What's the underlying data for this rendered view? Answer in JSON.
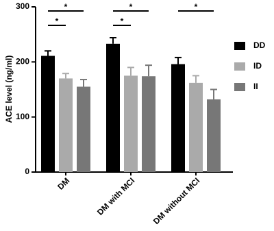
{
  "chart_data": {
    "type": "bar",
    "y_label": "ACE level (ng/ml)",
    "categories": [
      "DM",
      "DM with MCI",
      "DM without MCI"
    ],
    "series": [
      {
        "name": "DD",
        "color": "#000000",
        "values": [
          211,
          233,
          196
        ],
        "errors": [
          9,
          11,
          12
        ]
      },
      {
        "name": "ID",
        "color": "#aaaaaa",
        "values": [
          170,
          175,
          162
        ],
        "errors": [
          9,
          15,
          13
        ]
      },
      {
        "name": "II",
        "color": "#777777",
        "values": [
          155,
          174,
          132
        ],
        "errors": [
          13,
          20,
          18
        ]
      }
    ],
    "ylim": [
      0,
      300
    ],
    "yticks": [
      0,
      100,
      200,
      300
    ],
    "legend": "right",
    "annotations": [
      {
        "text": "*",
        "category": "DM",
        "between": [
          "DD",
          "II"
        ]
      },
      {
        "text": "*",
        "category": "DM",
        "between": [
          "DD",
          "ID"
        ]
      },
      {
        "text": "*",
        "category": "DM with MCI",
        "between": [
          "DD",
          "II"
        ]
      },
      {
        "text": "*",
        "category": "DM with MCI",
        "between": [
          "DD",
          "ID"
        ]
      },
      {
        "text": "*",
        "category": "DM without MCI",
        "between": [
          "DD",
          "II"
        ]
      }
    ]
  }
}
